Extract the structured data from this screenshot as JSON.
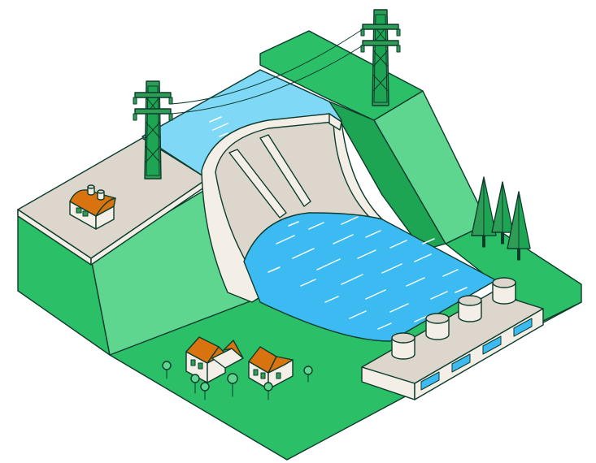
{
  "colors": {
    "grass": "#2bbf67",
    "grass_light": "#5ed690",
    "grass_dark": "#1ea553",
    "concrete_top": "#ddd6cc",
    "concrete_side": "#f3eee6",
    "water_light": "#7fd8f6",
    "water": "#3cbbf2",
    "roof": "#d9730f",
    "outline": "#0d3b2c",
    "tree": "#2e9e57",
    "pylon": "#2e9e57"
  },
  "icons": {
    "tower_left": "power-pylon-icon",
    "tower_right": "power-pylon-icon",
    "control_house": "powerhouse-icon",
    "village": "house-icon",
    "forest": "pine-tree-icon",
    "turbine_block": "turbine-outlet-icon"
  }
}
